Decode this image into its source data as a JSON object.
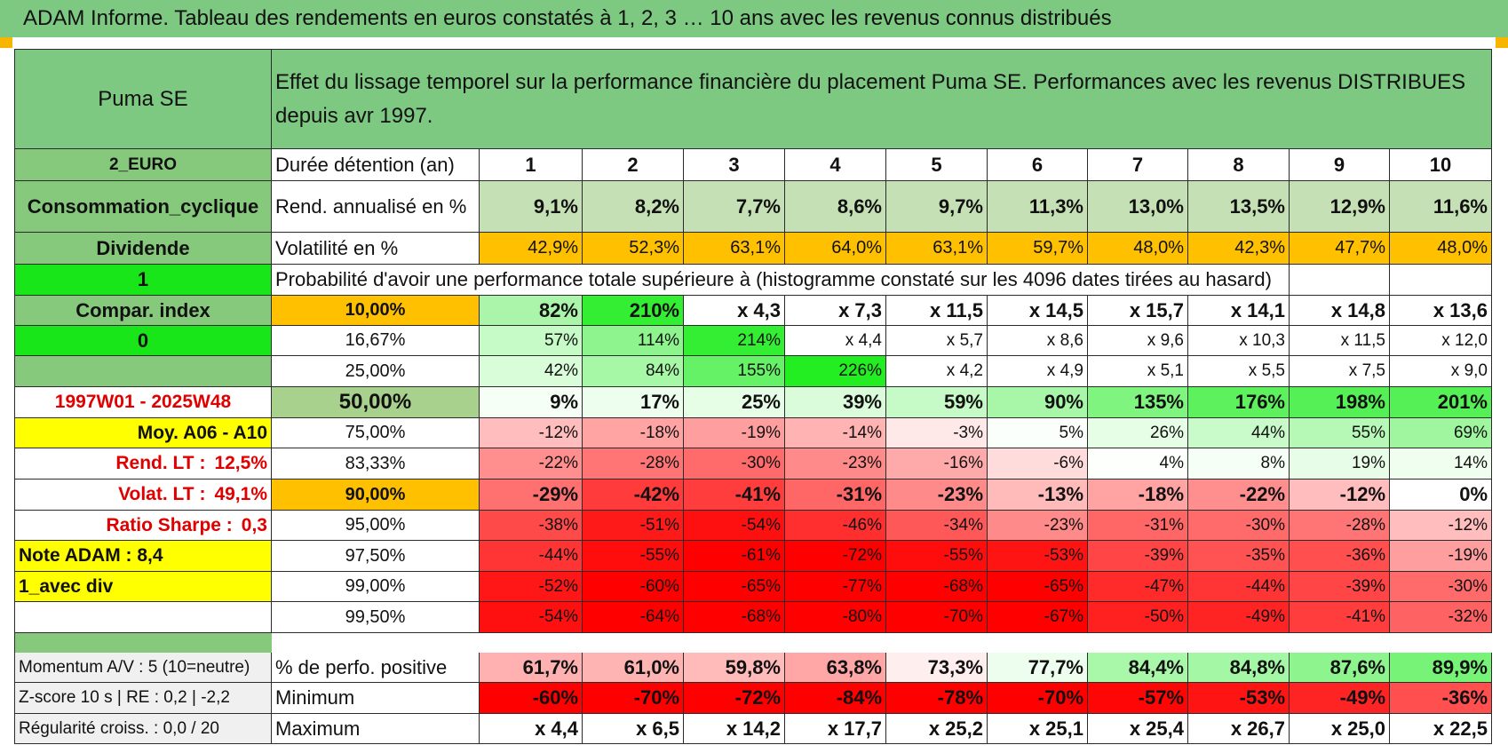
{
  "banner": "ADAM Informe. Tableau des rendements en euros constatés à 1, 2, 3 … 10 ans avec les revenus connus distribués",
  "colors": {
    "header_green": "#7dc982",
    "label_green": "#86c97d",
    "bright_green": "#19e619",
    "yellow": "#ffff00",
    "orange": "#ffc000",
    "pale_green": "#c5e0b4",
    "median_green": "#a9d18e"
  },
  "left_panel": {
    "company": "Puma SE",
    "euro": "2_EURO",
    "sector": "Consommation_cyclique",
    "dividend": "Dividende",
    "flag1": "1",
    "compar": "Compar. index",
    "flag0": "0",
    "empty": "",
    "period": "1997W01 - 2025W48",
    "moy": "Moy. A06 - A10",
    "rend_lt_label": "Rend. LT :",
    "rend_lt_value": "12,5%",
    "volat_lt_label": "Volat. LT :",
    "volat_lt_value": "49,1%",
    "sharpe_label": "Ratio Sharpe :",
    "sharpe_value": "0,3",
    "note": "Note ADAM : 8,4",
    "div_mode": "1_avec div",
    "momentum": "Momentum A/V : 5 (10=neutre)",
    "zscore": "Z-score 10 s | RE : 0,2 | -2,2",
    "regularite": "Régularité croiss. : 0,0 / 20"
  },
  "header_title": "Effet du lissage temporel sur la performance financière du placement Puma SE. Performances avec les revenus DISTRIBUES depuis avr 1997.",
  "durations_label": "Durée détention (an)",
  "durations": [
    "1",
    "2",
    "3",
    "4",
    "5",
    "6",
    "7",
    "8",
    "9",
    "10"
  ],
  "rend_label": "Rend. annualisé en %",
  "rend": [
    "9,1%",
    "8,2%",
    "7,7%",
    "8,6%",
    "9,7%",
    "11,3%",
    "13,0%",
    "13,5%",
    "12,9%",
    "11,6%"
  ],
  "vol_label": "Volatilité en %",
  "vol": [
    "42,9%",
    "52,3%",
    "63,1%",
    "64,0%",
    "63,1%",
    "59,7%",
    "48,0%",
    "42,3%",
    "47,7%",
    "48,0%"
  ],
  "prob_title": "Probabilité d'avoir une performance totale supérieure à (histogramme constaté sur les 4096 dates tirées au hasard)",
  "quantiles": [
    {
      "label": "10,00%",
      "bold": true,
      "values": [
        "82%",
        "210%",
        "x 4,3",
        "x 7,3",
        "x 11,5",
        "x 14,5",
        "x 15,7",
        "x 14,1",
        "x 14,8",
        "x 13,6"
      ],
      "colors": [
        "#aaf5aa",
        "#33ee33",
        "#ffffff",
        "#ffffff",
        "#ffffff",
        "#ffffff",
        "#ffffff",
        "#ffffff",
        "#ffffff",
        "#ffffff"
      ]
    },
    {
      "label": "16,67%",
      "bold": false,
      "values": [
        "57%",
        "114%",
        "214%",
        "x 4,4",
        "x 5,7",
        "x 8,6",
        "x 9,6",
        "x 10,3",
        "x 11,5",
        "x 12,0"
      ],
      "colors": [
        "#c6fac6",
        "#8ef58e",
        "#33ee33",
        "#ffffff",
        "#ffffff",
        "#ffffff",
        "#ffffff",
        "#ffffff",
        "#ffffff",
        "#ffffff"
      ]
    },
    {
      "label": "25,00%",
      "bold": false,
      "values": [
        "42%",
        "84%",
        "155%",
        "226%",
        "x 4,2",
        "x 4,9",
        "x 5,1",
        "x 5,5",
        "x 7,5",
        "x 9,0"
      ],
      "colors": [
        "#d9fcd9",
        "#a6f7a6",
        "#66f266",
        "#22ee22",
        "#ffffff",
        "#ffffff",
        "#ffffff",
        "#ffffff",
        "#ffffff",
        "#ffffff"
      ]
    },
    {
      "label": "50,00%",
      "bold": true,
      "values": [
        "9%",
        "17%",
        "25%",
        "39%",
        "59%",
        "90%",
        "135%",
        "176%",
        "198%",
        "201%"
      ],
      "colors": [
        "#f5fff5",
        "#eefeee",
        "#e6fde6",
        "#dafcda",
        "#c6fac6",
        "#a8f7a8",
        "#7ff47f",
        "#5ef15e",
        "#55f055",
        "#55f055"
      ]
    },
    {
      "label": "75,00%",
      "bold": false,
      "values": [
        "-12%",
        "-18%",
        "-19%",
        "-14%",
        "-3%",
        "5%",
        "26%",
        "44%",
        "55%",
        "69%"
      ],
      "colors": [
        "#ffbdbd",
        "#ffa3a3",
        "#ff9e9e",
        "#ffb3b3",
        "#ffe8e8",
        "#fbfffb",
        "#e6fde6",
        "#c9fac9",
        "#b6f8b6",
        "#9ff69f"
      ]
    },
    {
      "label": "83,33%",
      "bold": false,
      "values": [
        "-22%",
        "-28%",
        "-30%",
        "-23%",
        "-16%",
        "-6%",
        "4%",
        "8%",
        "19%",
        "14%"
      ],
      "colors": [
        "#ff8f8f",
        "#ff7575",
        "#ff6b6b",
        "#ff8a8a",
        "#ffaaaa",
        "#ffdcdc",
        "#fcfffc",
        "#f5fff5",
        "#e8fde8",
        "#f0fef0"
      ]
    },
    {
      "label": "90,00%",
      "bold": true,
      "values": [
        "-29%",
        "-42%",
        "-41%",
        "-31%",
        "-23%",
        "-13%",
        "-18%",
        "-22%",
        "-12%",
        "0%"
      ],
      "colors": [
        "#ff7070",
        "#ff3b3b",
        "#ff3d3d",
        "#ff6666",
        "#ff8a8a",
        "#ffbaba",
        "#ffa3a3",
        "#ff8f8f",
        "#ffbdbd",
        "#ffffff"
      ]
    },
    {
      "label": "95,00%",
      "bold": false,
      "values": [
        "-38%",
        "-51%",
        "-54%",
        "-46%",
        "-34%",
        "-23%",
        "-31%",
        "-30%",
        "-28%",
        "-12%"
      ],
      "colors": [
        "#ff4a4a",
        "#ff1a1a",
        "#ff1010",
        "#ff2f2f",
        "#ff5858",
        "#ff8a8a",
        "#ff6666",
        "#ff6b6b",
        "#ff7575",
        "#ffbdbd"
      ]
    },
    {
      "label": "97,50%",
      "bold": false,
      "values": [
        "-44%",
        "-55%",
        "-61%",
        "-72%",
        "-55%",
        "-53%",
        "-39%",
        "-35%",
        "-36%",
        "-19%"
      ],
      "colors": [
        "#ff3535",
        "#ff0c0c",
        "#ff0000",
        "#ff0000",
        "#ff0c0c",
        "#ff1414",
        "#ff4545",
        "#ff5353",
        "#ff4f4f",
        "#ff9e9e"
      ]
    },
    {
      "label": "99,00%",
      "bold": false,
      "values": [
        "-52%",
        "-60%",
        "-65%",
        "-77%",
        "-68%",
        "-65%",
        "-47%",
        "-44%",
        "-39%",
        "-30%"
      ],
      "colors": [
        "#ff1616",
        "#ff0000",
        "#ff0000",
        "#ff0000",
        "#ff0000",
        "#ff0000",
        "#ff2b2b",
        "#ff3535",
        "#ff4545",
        "#ff6b6b"
      ]
    },
    {
      "label": "99,50%",
      "bold": false,
      "values": [
        "-54%",
        "-64%",
        "-68%",
        "-80%",
        "-70%",
        "-67%",
        "-50%",
        "-49%",
        "-41%",
        "-32%"
      ],
      "colors": [
        "#ff1010",
        "#ff0000",
        "#ff0000",
        "#ff0000",
        "#ff0000",
        "#ff0000",
        "#ff2020",
        "#ff2424",
        "#ff3d3d",
        "#ff6262"
      ]
    }
  ],
  "pos_label": "% de perfo. positive",
  "pos": [
    "61,7%",
    "61,0%",
    "59,8%",
    "63,8%",
    "73,3%",
    "77,7%",
    "84,4%",
    "84,8%",
    "87,6%",
    "89,9%"
  ],
  "pos_colors": [
    "#ffb0b0",
    "#ffb4b4",
    "#ffbaba",
    "#ffa6a6",
    "#ffeeee",
    "#eefeee",
    "#a9f7a9",
    "#a4f7a4",
    "#8ef58e",
    "#77f377"
  ],
  "min_label": "Minimum",
  "min": [
    "-60%",
    "-70%",
    "-72%",
    "-84%",
    "-78%",
    "-70%",
    "-57%",
    "-53%",
    "-49%",
    "-36%"
  ],
  "min_colors": [
    "#ff0000",
    "#ff0000",
    "#ff0000",
    "#ff0000",
    "#ff0000",
    "#ff0000",
    "#ff0606",
    "#ff1414",
    "#ff2424",
    "#ff4f4f"
  ],
  "max_label": "Maximum",
  "max": [
    "x 4,4",
    "x 6,5",
    "x 14,2",
    "x 17,7",
    "x 25,2",
    "x 25,1",
    "x 25,4",
    "x 26,7",
    "x 25,0",
    "x 22,5"
  ]
}
